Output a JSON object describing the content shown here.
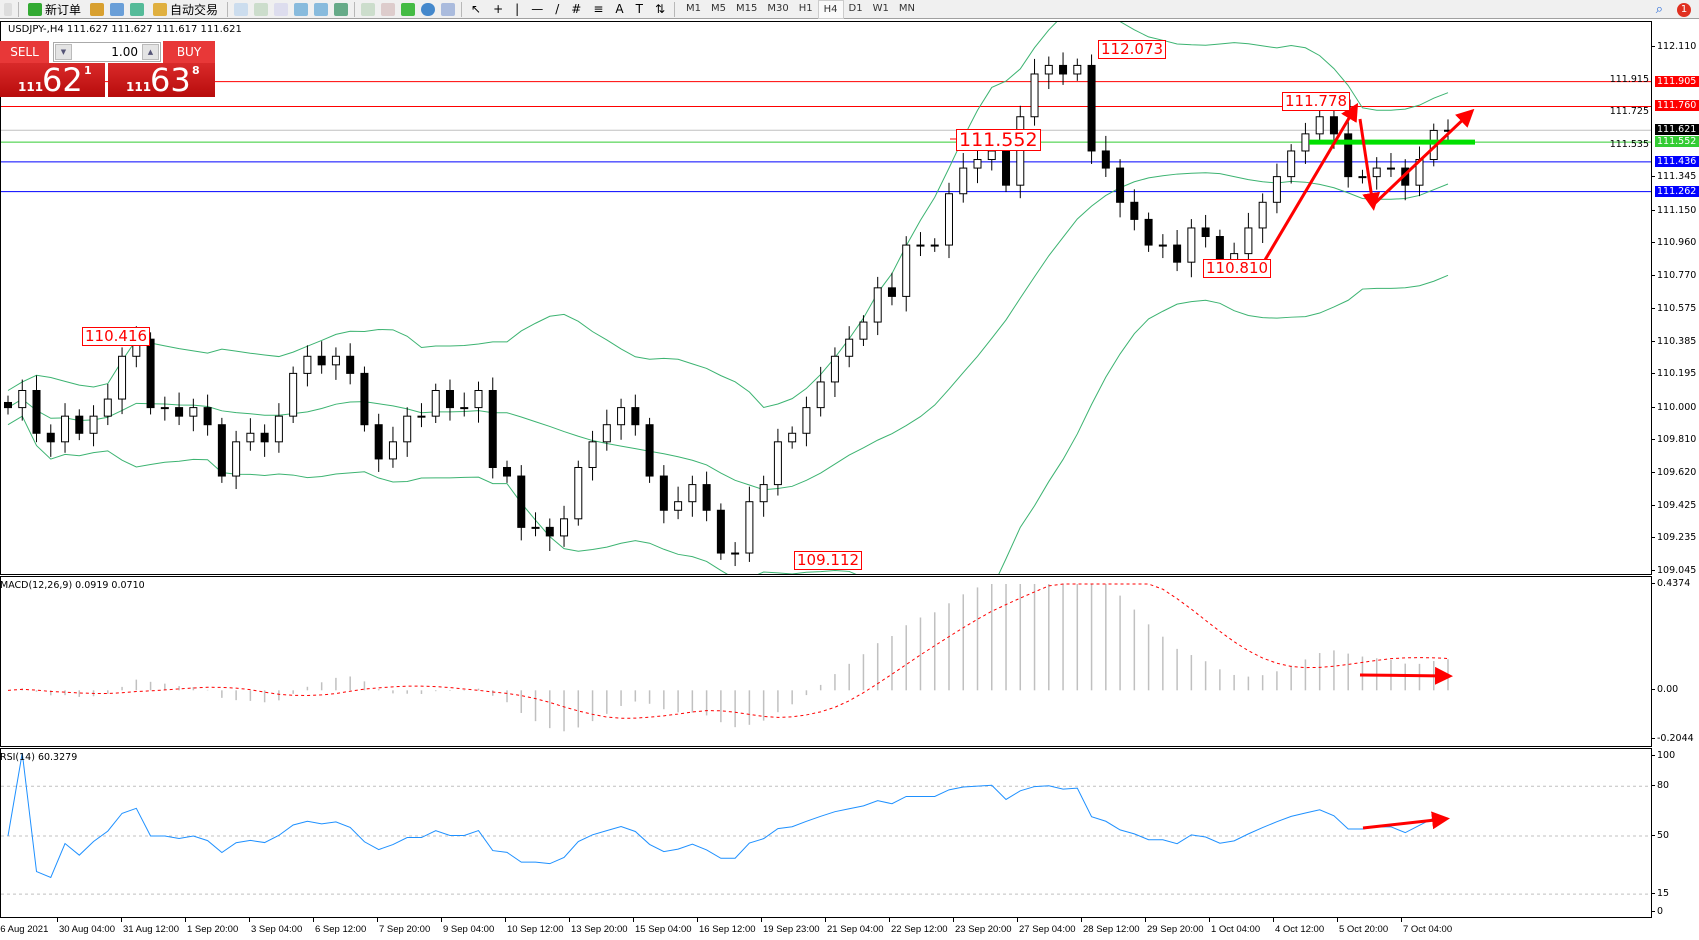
{
  "toolbar": {
    "new_order_label": "新订单",
    "auto_trading_label": "自动交易",
    "timeframes": [
      "M1",
      "M5",
      "M15",
      "M30",
      "H1",
      "H4",
      "D1",
      "W1",
      "MN"
    ],
    "active_timeframe": "H4",
    "notification_count": "1"
  },
  "chart_header": "USDJPY-,H4  111.627 111.627 111.617 111.621",
  "one_click": {
    "sell_label": "SELL",
    "buy_label": "BUY",
    "lots": "1.00",
    "sell_price": {
      "prefix": "111",
      "big": "62",
      "sup": "1"
    },
    "buy_price": {
      "prefix": "111",
      "big": "63",
      "sup": "8"
    }
  },
  "colors": {
    "bull": "#ffffff",
    "bear": "#000000",
    "bands": "#3cb371",
    "macd_hist": "#c0c0c0",
    "macd_signal": "#ff0000",
    "rsi": "#1e90ff",
    "annotation": "#ff0000",
    "support": "#00e000"
  },
  "chart_data": {
    "type": "candlestick",
    "symbol": "USDJPY-",
    "timeframe": "H4",
    "ylim": [
      109.045,
      112.11
    ],
    "closes": [
      110.0,
      110.1,
      109.85,
      109.8,
      109.95,
      109.85,
      109.95,
      110.05,
      110.3,
      110.4,
      110.0,
      110.0,
      109.95,
      110.0,
      109.9,
      109.6,
      109.8,
      109.85,
      109.8,
      109.95,
      110.2,
      110.3,
      110.25,
      110.3,
      110.2,
      109.9,
      109.7,
      109.8,
      109.95,
      109.95,
      110.1,
      110.0,
      110.0,
      110.1,
      109.65,
      109.6,
      109.3,
      109.3,
      109.25,
      109.35,
      109.65,
      109.8,
      109.9,
      110.0,
      109.9,
      109.6,
      109.4,
      109.45,
      109.55,
      109.4,
      109.15,
      109.15,
      109.45,
      109.55,
      109.8,
      109.85,
      110.0,
      110.15,
      110.3,
      110.4,
      110.5,
      110.7,
      110.65,
      110.95,
      110.95,
      110.95,
      111.25,
      111.4,
      111.45,
      111.5,
      111.3,
      111.7,
      111.95,
      112.0,
      111.95,
      112.0,
      111.5,
      111.4,
      111.2,
      111.1,
      110.95,
      110.95,
      110.85,
      111.05,
      111.0,
      110.85,
      110.9,
      111.05,
      111.2,
      111.35,
      111.5,
      111.6,
      111.7,
      111.6,
      111.35,
      111.35,
      111.4,
      111.4,
      111.3,
      111.45,
      111.62,
      111.621
    ],
    "price_ticks": [
      "112.110",
      "111.915",
      "111.725",
      "111.535",
      "111.345",
      "111.150",
      "110.960",
      "110.770",
      "110.575",
      "110.385",
      "110.195",
      "110.000",
      "109.810",
      "109.620",
      "109.425",
      "109.235",
      "109.045"
    ],
    "time_labels": [
      "26 Aug 2021",
      "30 Aug 04:00",
      "31 Aug 12:00",
      "1 Sep 20:00",
      "3 Sep 04:00",
      "6 Sep 12:00",
      "7 Sep 20:00",
      "9 Sep 04:00",
      "10 Sep 12:00",
      "13 Sep 20:00",
      "15 Sep 04:00",
      "16 Sep 12:00",
      "19 Sep 23:00",
      "21 Sep 04:00",
      "22 Sep 12:00",
      "23 Sep 20:00",
      "27 Sep 04:00",
      "28 Sep 12:00",
      "29 Sep 20:00",
      "1 Oct 04:00",
      "4 Oct 12:00",
      "5 Oct 20:00",
      "7 Oct 04:00"
    ],
    "horizontal_lines": [
      {
        "price": 111.905,
        "label": "111.905",
        "color": "#ff0000"
      },
      {
        "price": 111.76,
        "label": "111.760",
        "color": "#ff0000"
      },
      {
        "price": 111.621,
        "label": "111.621",
        "color": "#c0c0c0",
        "label_bg": "#000000"
      },
      {
        "price": 111.552,
        "label": "111.552",
        "color": "#33cc33",
        "label_bg": "#33cc33"
      },
      {
        "price": 111.436,
        "label": "111.436",
        "color": "#0000ff"
      },
      {
        "price": 111.262,
        "label": "111.262",
        "color": "#0000ff"
      }
    ],
    "annotations": [
      "112.073",
      "111.778",
      "111.552",
      "110.416",
      "109.112",
      "110.810"
    ],
    "indicators": {
      "bollinger": "Bollinger Bands (20, 2)",
      "macd": {
        "title": "MACD(12,26,9) 0.0919 0.0710",
        "ylim": [
          -0.2044,
          0.4374
        ],
        "ticks": [
          "0.4374",
          "0.00",
          "-0.2044"
        ]
      },
      "rsi": {
        "title": "RSI(14) 60.3279",
        "ylim": [
          0,
          100
        ],
        "levels": [
          80,
          50,
          15
        ],
        "ticks": [
          "100",
          "80",
          "50",
          "15",
          "0"
        ]
      }
    }
  }
}
